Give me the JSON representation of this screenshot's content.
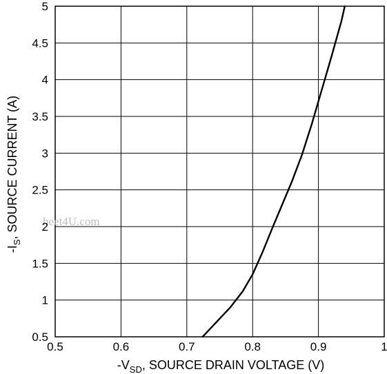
{
  "chart_data": {
    "type": "line",
    "title": "",
    "xlabel": {
      "prefix": "-V",
      "sub": "SD",
      "suffix": ", SOURCE DRAIN VOLTAGE (V)"
    },
    "ylabel": {
      "prefix": "-I",
      "sub": "S",
      "suffix": ", SOURCE CURRENT (A)"
    },
    "xlim": [
      0.5,
      1
    ],
    "ylim": [
      0.5,
      5
    ],
    "x_ticks": [
      "0.5",
      "0.6",
      "0.7",
      "0.8",
      "0.9",
      "1"
    ],
    "y_ticks": [
      "0.5",
      "1",
      "1.5",
      "2",
      "2.5",
      "3",
      "3.5",
      "4",
      "4.5",
      "5"
    ],
    "grid": true,
    "series": [
      {
        "x": [
          0.724,
          0.745,
          0.766,
          0.785,
          0.8,
          0.815,
          0.83,
          0.845,
          0.86,
          0.875,
          0.89,
          0.905,
          0.92,
          0.935,
          0.94
        ],
        "y": [
          0.5,
          0.7,
          0.9,
          1.12,
          1.35,
          1.65,
          1.98,
          2.3,
          2.62,
          2.98,
          3.4,
          3.86,
          4.32,
          4.8,
          5.0
        ]
      }
    ],
    "watermark": "heet4U.com",
    "line_color": "#000000"
  }
}
